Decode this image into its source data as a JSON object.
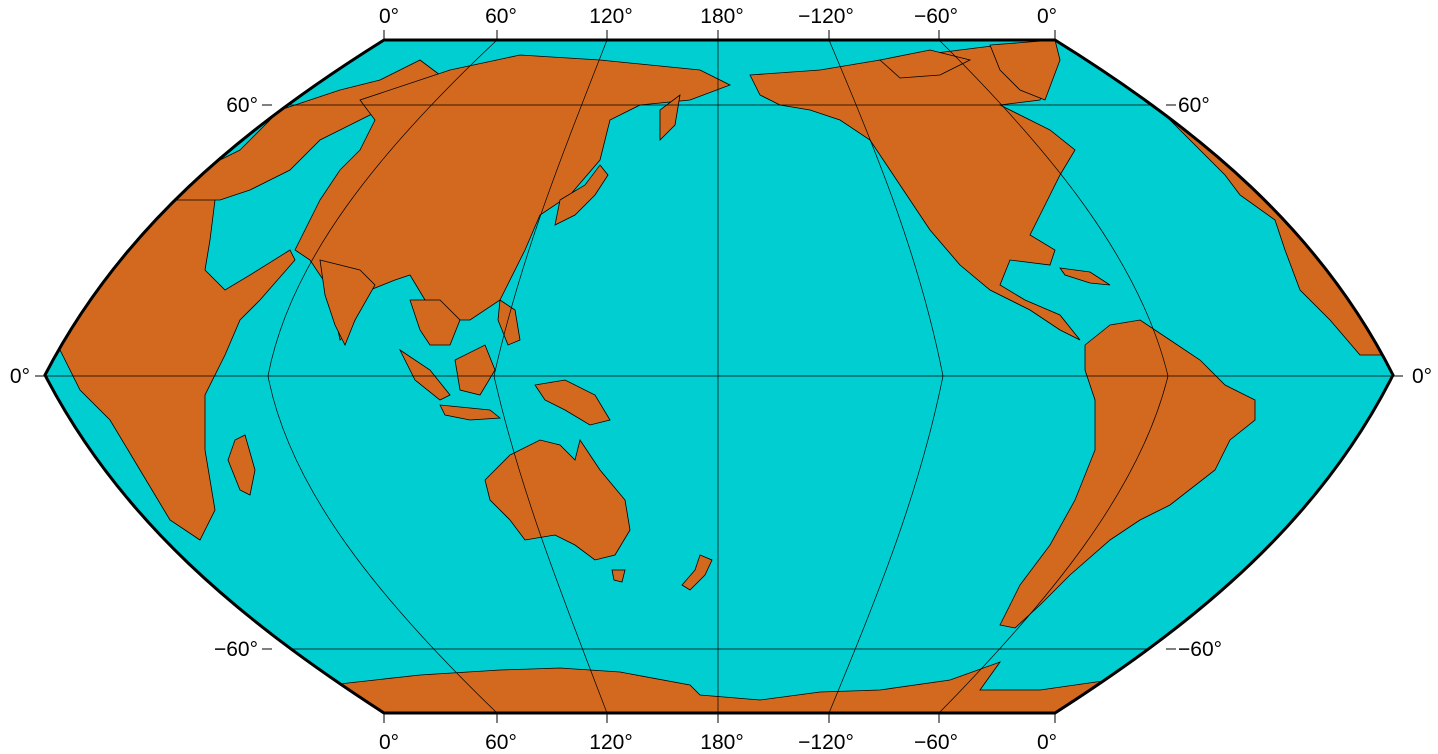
{
  "map": {
    "projection": "Eckert VI (rectangular-frame style)",
    "central_meridian_label": "180°",
    "ocean_color": "#00ced1",
    "land_color": "#d2691e",
    "frame_color": "#000000",
    "top_labels": [
      "0°",
      "60°",
      "120°",
      "180°",
      "−120°",
      "−60°",
      "0°"
    ],
    "bottom_labels": [
      "0°",
      "60°",
      "120°",
      "180°",
      "−120°",
      "−60°",
      "0°"
    ],
    "left_labels": [
      "60°",
      "0°",
      "−60°"
    ],
    "right_labels": [
      "60°",
      "0°",
      "−60°"
    ]
  }
}
